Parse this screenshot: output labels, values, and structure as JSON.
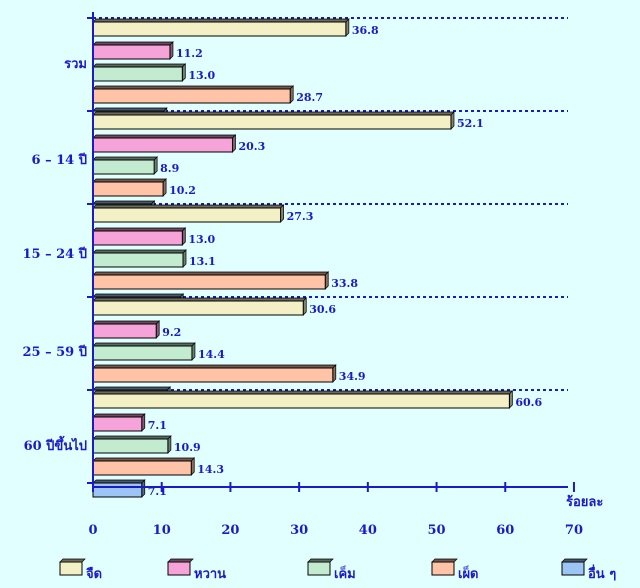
{
  "chart_data": {
    "type": "bar",
    "orientation": "horizontal",
    "categories": [
      "รวม",
      "6 – 14 ปี",
      "15 – 24 ปี",
      "25 – 59 ปี",
      "60 ปีขึ้นไป"
    ],
    "series": [
      {
        "name": "จืด",
        "color": "#F2F0C4",
        "values": [
          36.8,
          52.1,
          27.3,
          30.6,
          60.6
        ]
      },
      {
        "name": "หวาน",
        "color": "#F5A3D8",
        "values": [
          11.2,
          20.3,
          13.0,
          9.2,
          7.1
        ]
      },
      {
        "name": "เค็ม",
        "color": "#C2EBD0",
        "values": [
          13.0,
          8.9,
          13.1,
          14.4,
          10.9
        ]
      },
      {
        "name": "เผ็ด",
        "color": "#FFC4A8",
        "values": [
          28.7,
          10.2,
          33.8,
          34.9,
          14.3
        ]
      },
      {
        "name": "อื่น ๆ",
        "color": "#9CC5F5",
        "values": [
          10.3,
          8.5,
          12.7,
          10.8,
          7.1
        ]
      }
    ],
    "x_ticks": [
      "0",
      "10",
      "20",
      "30",
      "40",
      "50",
      "60",
      "70"
    ],
    "xlim": [
      0,
      70
    ],
    "xlabel": "ร้อยละ",
    "grid": "dashed horizontal separators between groups",
    "legend_position": "bottom"
  }
}
